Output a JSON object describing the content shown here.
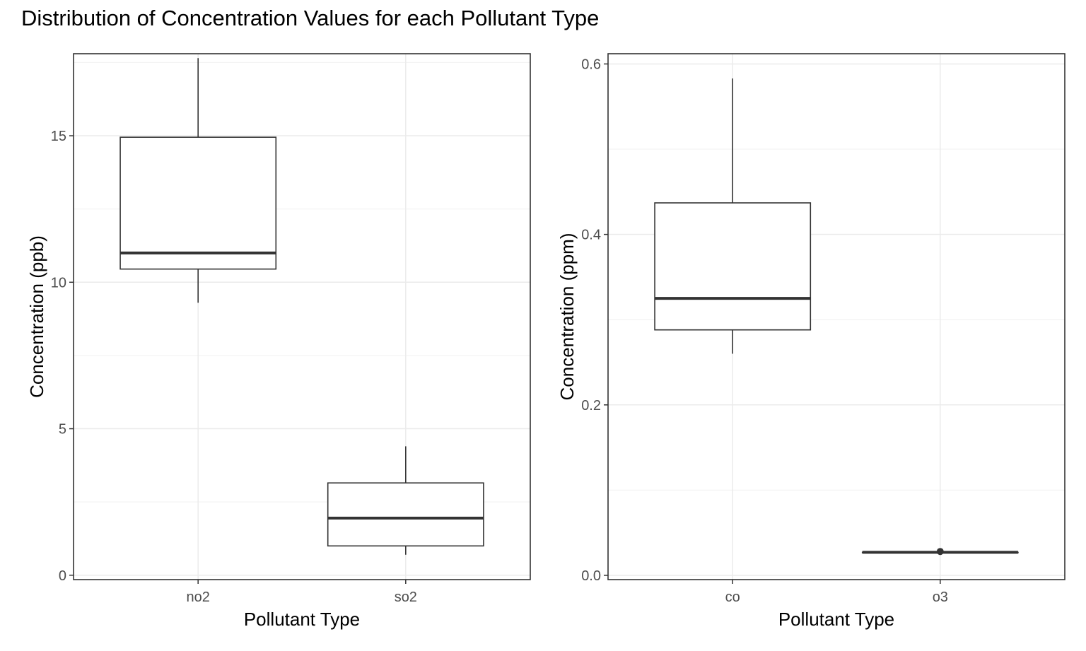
{
  "title": "Distribution of Concentration Values for each Pollutant Type",
  "colors": {
    "box_stroke": "#333333",
    "panel_border": "#333333",
    "grid_major": "#ebebeb",
    "grid_minor": "#f3f3f3",
    "tick_text": "#4d4d4d",
    "axis_title": "#000000"
  },
  "chart_data": [
    {
      "type": "boxplot",
      "xlabel": "Pollutant Type",
      "ylabel": "Concentration (ppb)",
      "categories": [
        "no2",
        "so2"
      ],
      "ylim": [
        -0.15,
        17.8
      ],
      "yticks": [
        0,
        5,
        10,
        15
      ],
      "ytick_labels": [
        "0",
        "5",
        "10",
        "15"
      ],
      "grid": true,
      "boxes": [
        {
          "category": "no2",
          "min": 9.3,
          "q1": 10.45,
          "median": 11.0,
          "q3": 14.95,
          "max": 17.65
        },
        {
          "category": "so2",
          "min": 0.7,
          "q1": 1.0,
          "median": 1.95,
          "q3": 3.15,
          "max": 4.4
        }
      ]
    },
    {
      "type": "boxplot",
      "xlabel": "Pollutant Type",
      "ylabel": "Concentration (ppm)",
      "categories": [
        "co",
        "o3"
      ],
      "ylim": [
        -0.005,
        0.612
      ],
      "yticks": [
        0.0,
        0.2,
        0.4,
        0.6
      ],
      "ytick_labels": [
        "0.0",
        "0.2",
        "0.4",
        "0.6"
      ],
      "grid": true,
      "boxes": [
        {
          "category": "co",
          "min": 0.26,
          "q1": 0.288,
          "median": 0.325,
          "q3": 0.437,
          "max": 0.583
        },
        {
          "category": "o3",
          "min": 0.027,
          "q1": 0.027,
          "median": 0.027,
          "q3": 0.027,
          "max": 0.027,
          "outliers": [
            0.028
          ]
        }
      ]
    }
  ]
}
